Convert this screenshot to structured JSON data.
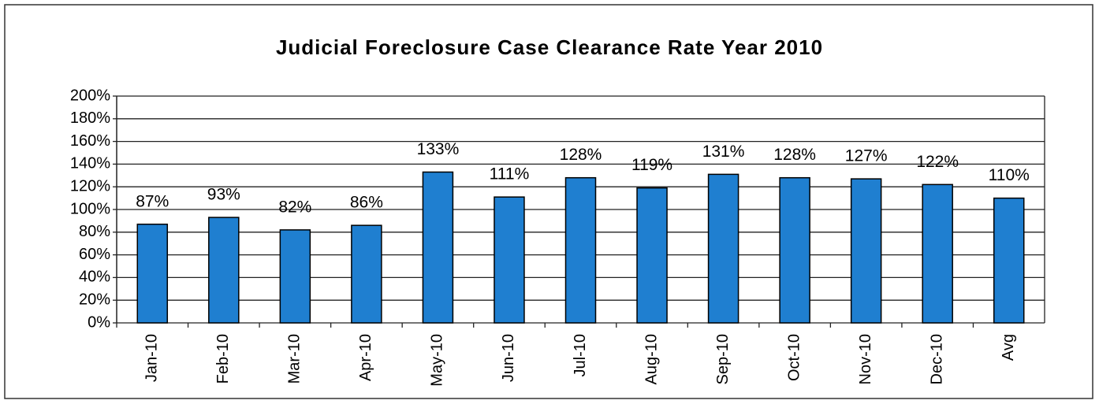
{
  "chart_data": {
    "type": "bar",
    "title": "Judicial Foreclosure Case Clearance Rate Year 2010",
    "categories": [
      "Jan-10",
      "Feb-10",
      "Mar-10",
      "Apr-10",
      "May-10",
      "Jun-10",
      "Jul-10",
      "Aug-10",
      "Sep-10",
      "Oct-10",
      "Nov-10",
      "Dec-10",
      "Avg"
    ],
    "values": [
      87,
      93,
      82,
      86,
      133,
      111,
      128,
      119,
      131,
      128,
      127,
      122,
      110
    ],
    "value_labels": [
      "87%",
      "93%",
      "82%",
      "86%",
      "133%",
      "111%",
      "128%",
      "119%",
      "131%",
      "128%",
      "127%",
      "122%",
      "110%"
    ],
    "color": "#1f7fd0",
    "ylim": [
      0,
      200
    ],
    "yticks": [
      {
        "value": 0,
        "label": "0%"
      },
      {
        "value": 20,
        "label": "20%"
      },
      {
        "value": 40,
        "label": "40%"
      },
      {
        "value": 60,
        "label": "60%"
      },
      {
        "value": 80,
        "label": "80%"
      },
      {
        "value": 100,
        "label": "100%"
      },
      {
        "value": 120,
        "label": "120%"
      },
      {
        "value": 140,
        "label": "140%"
      },
      {
        "value": 160,
        "label": "160%"
      },
      {
        "value": 180,
        "label": "180%"
      },
      {
        "value": 200,
        "label": "200%"
      }
    ],
    "grid": true
  }
}
